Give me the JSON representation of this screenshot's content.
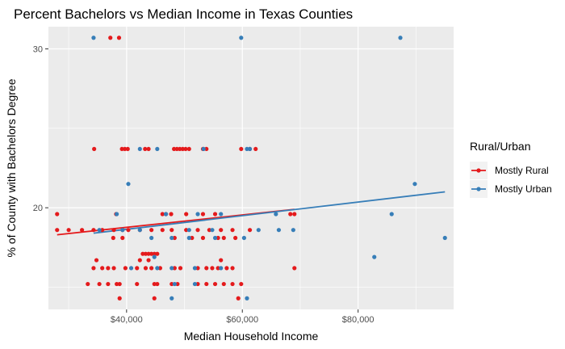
{
  "chart_data": {
    "type": "scatter",
    "title": "Percent Bachelors vs Median Income in Texas Counties",
    "xlabel": "Median Household Income",
    "ylabel": "% of County with Bachelors Degree",
    "xlim": [
      26500,
      96500
    ],
    "ylim": [
      13.6,
      31.4
    ],
    "x_ticks": [
      40000,
      60000,
      80000
    ],
    "x_tick_labels": [
      "$40,000",
      "$60,000",
      "$80,000"
    ],
    "y_ticks": [
      20,
      30
    ],
    "y_tick_labels": [
      "20",
      "30"
    ],
    "grid": true,
    "legend": {
      "title": "Rural/Urban",
      "position": "right"
    },
    "series": [
      {
        "name": "Mostly Rural",
        "color": "#e41a1c",
        "points": [
          [
            37200,
            30.7
          ],
          [
            38700,
            30.7
          ],
          [
            34400,
            23.7
          ],
          [
            39200,
            23.7
          ],
          [
            39700,
            23.7
          ],
          [
            40200,
            23.7
          ],
          [
            43200,
            23.7
          ],
          [
            43800,
            23.7
          ],
          [
            48200,
            23.7
          ],
          [
            48700,
            23.7
          ],
          [
            49200,
            23.7
          ],
          [
            49700,
            23.7
          ],
          [
            50200,
            23.7
          ],
          [
            50800,
            23.7
          ],
          [
            53200,
            23.7
          ],
          [
            53800,
            23.7
          ],
          [
            59800,
            23.7
          ],
          [
            61300,
            23.7
          ],
          [
            62300,
            23.7
          ],
          [
            28000,
            19.6
          ],
          [
            38200,
            19.6
          ],
          [
            46200,
            19.6
          ],
          [
            46800,
            19.6
          ],
          [
            47700,
            19.6
          ],
          [
            50300,
            19.6
          ],
          [
            53200,
            19.6
          ],
          [
            55300,
            19.6
          ],
          [
            68300,
            19.6
          ],
          [
            69000,
            19.6
          ],
          [
            28000,
            18.6
          ],
          [
            30000,
            18.6
          ],
          [
            32300,
            18.6
          ],
          [
            34300,
            18.6
          ],
          [
            35800,
            18.6
          ],
          [
            37800,
            18.6
          ],
          [
            39300,
            18.6
          ],
          [
            40300,
            18.6
          ],
          [
            42300,
            18.6
          ],
          [
            44300,
            18.6
          ],
          [
            46200,
            18.6
          ],
          [
            47800,
            18.6
          ],
          [
            50300,
            18.6
          ],
          [
            52300,
            18.6
          ],
          [
            54300,
            18.6
          ],
          [
            56300,
            18.6
          ],
          [
            58300,
            18.6
          ],
          [
            61300,
            18.6
          ],
          [
            37700,
            18.1
          ],
          [
            39300,
            18.1
          ],
          [
            48300,
            18.1
          ],
          [
            51300,
            18.1
          ],
          [
            53200,
            18.1
          ],
          [
            55800,
            18.1
          ],
          [
            56800,
            18.1
          ],
          [
            58800,
            18.1
          ],
          [
            42800,
            17.1
          ],
          [
            43300,
            17.1
          ],
          [
            43800,
            17.1
          ],
          [
            44300,
            17.1
          ],
          [
            44800,
            17.1
          ],
          [
            45300,
            17.1
          ],
          [
            34800,
            16.7
          ],
          [
            42300,
            16.7
          ],
          [
            43800,
            16.7
          ],
          [
            56300,
            16.7
          ],
          [
            34300,
            16.2
          ],
          [
            35800,
            16.2
          ],
          [
            36800,
            16.2
          ],
          [
            37800,
            16.2
          ],
          [
            39800,
            16.2
          ],
          [
            41800,
            16.2
          ],
          [
            43300,
            16.2
          ],
          [
            44300,
            16.2
          ],
          [
            45800,
            16.2
          ],
          [
            48300,
            16.2
          ],
          [
            49300,
            16.2
          ],
          [
            52300,
            16.2
          ],
          [
            53800,
            16.2
          ],
          [
            54800,
            16.2
          ],
          [
            55800,
            16.2
          ],
          [
            57300,
            16.2
          ],
          [
            58300,
            16.2
          ],
          [
            69000,
            16.2
          ],
          [
            33300,
            15.2
          ],
          [
            35300,
            15.2
          ],
          [
            36800,
            15.2
          ],
          [
            38300,
            15.2
          ],
          [
            38800,
            15.2
          ],
          [
            41800,
            15.2
          ],
          [
            44800,
            15.2
          ],
          [
            45300,
            15.2
          ],
          [
            47800,
            15.2
          ],
          [
            48800,
            15.2
          ],
          [
            52300,
            15.2
          ],
          [
            53800,
            15.2
          ],
          [
            55300,
            15.2
          ],
          [
            56800,
            15.2
          ],
          [
            58300,
            15.2
          ],
          [
            59800,
            15.2
          ],
          [
            38800,
            14.3
          ],
          [
            44800,
            14.3
          ],
          [
            59300,
            14.3
          ]
        ],
        "trend": [
          [
            28000,
            18.3
          ],
          [
            69000,
            19.9
          ]
        ]
      },
      {
        "name": "Mostly Urban",
        "color": "#377eb8",
        "points": [
          [
            34300,
            30.7
          ],
          [
            59800,
            30.7
          ],
          [
            87300,
            30.7
          ],
          [
            42300,
            23.7
          ],
          [
            45300,
            23.7
          ],
          [
            53300,
            23.7
          ],
          [
            60800,
            23.7
          ],
          [
            61300,
            23.7
          ],
          [
            40300,
            21.5
          ],
          [
            89800,
            21.5
          ],
          [
            38300,
            19.6
          ],
          [
            46800,
            19.6
          ],
          [
            52300,
            19.6
          ],
          [
            56300,
            19.6
          ],
          [
            65800,
            19.6
          ],
          [
            85800,
            19.6
          ],
          [
            35300,
            18.6
          ],
          [
            39300,
            18.6
          ],
          [
            42300,
            18.6
          ],
          [
            50800,
            18.6
          ],
          [
            54800,
            18.6
          ],
          [
            62800,
            18.6
          ],
          [
            66300,
            18.6
          ],
          [
            68800,
            18.6
          ],
          [
            44300,
            18.1
          ],
          [
            47800,
            18.1
          ],
          [
            50800,
            18.1
          ],
          [
            55300,
            18.1
          ],
          [
            60300,
            18.1
          ],
          [
            95000,
            18.1
          ],
          [
            44800,
            16.9
          ],
          [
            82800,
            16.9
          ],
          [
            40800,
            16.2
          ],
          [
            45300,
            16.2
          ],
          [
            47800,
            16.2
          ],
          [
            51800,
            16.2
          ],
          [
            56300,
            16.2
          ],
          [
            48300,
            15.2
          ],
          [
            51800,
            15.2
          ],
          [
            47800,
            14.3
          ],
          [
            60800,
            14.3
          ]
        ],
        "trend": [
          [
            34300,
            18.4
          ],
          [
            95000,
            21.0
          ]
        ]
      }
    ]
  }
}
